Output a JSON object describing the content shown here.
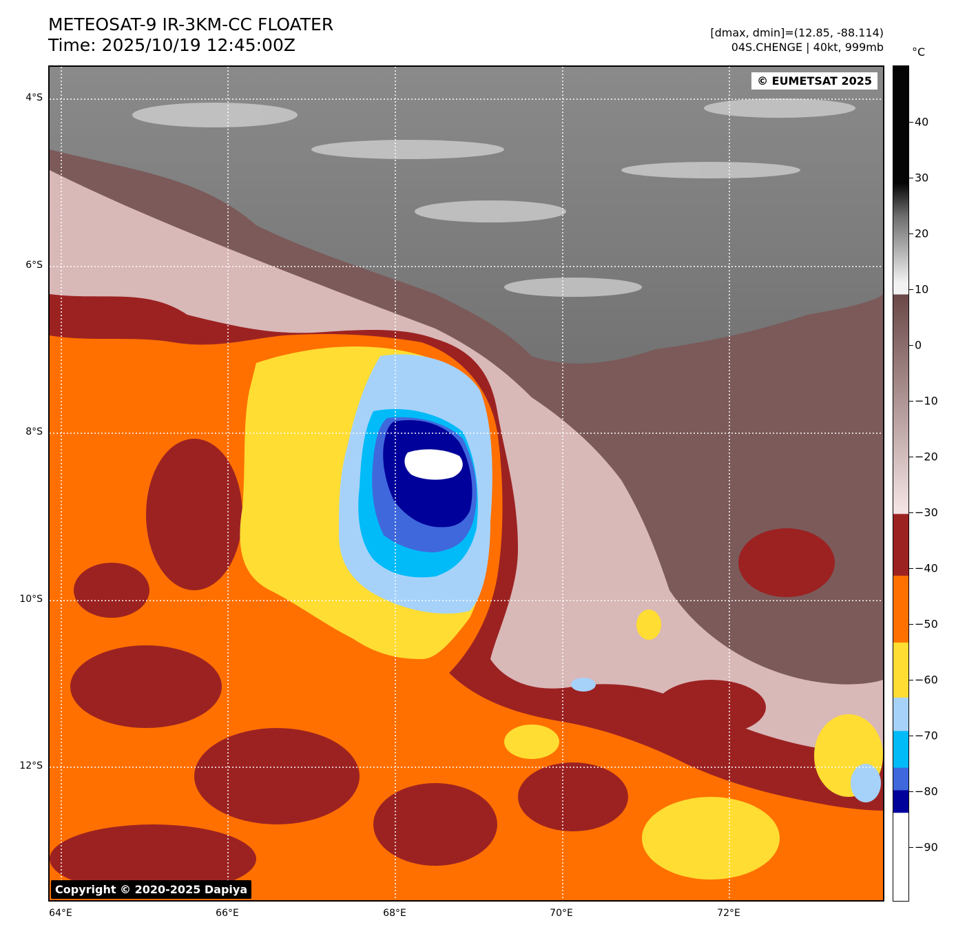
{
  "title": {
    "line1": "METEOSAT-9 IR-3KM-CC FLOATER",
    "line2": "Time: 2025/10/19 12:45:00Z"
  },
  "info": {
    "line1": "[dmax, dmin]=(12.85, -88.114)",
    "line2": "04S.CHENGE | 40kt, 999mb"
  },
  "badges": {
    "top_right": "© EUMETSAT 2025",
    "bottom_left": "Copyright © 2020-2025 Dapiya"
  },
  "axes": {
    "lat_labels": [
      "4°S",
      "6°S",
      "8°S",
      "10°S",
      "12°S"
    ],
    "lon_labels": [
      "64°E",
      "66°E",
      "68°E",
      "70°E",
      "72°E"
    ]
  },
  "colorbar": {
    "unit": "°C",
    "ticks": [
      "40",
      "30",
      "20",
      "10",
      "0",
      "−10",
      "−20",
      "−30",
      "−40",
      "−50",
      "−60",
      "−70",
      "−80",
      "−90"
    ],
    "colors": {
      "warm_black": "#050505",
      "gray_mid": "#6e6e6e",
      "gray_light": "#f2f2f2",
      "brown_dark": "#6b4848",
      "pink_light": "#f3e2e2",
      "red_brown": "#9c2222",
      "orange": "#ff7000",
      "yellow": "#ffdd33",
      "light_blue": "#a6d2fa",
      "cyan": "#00bbf8",
      "royal_blue": "#3f68dd",
      "navy": "#00009a",
      "white": "#ffffff"
    }
  }
}
